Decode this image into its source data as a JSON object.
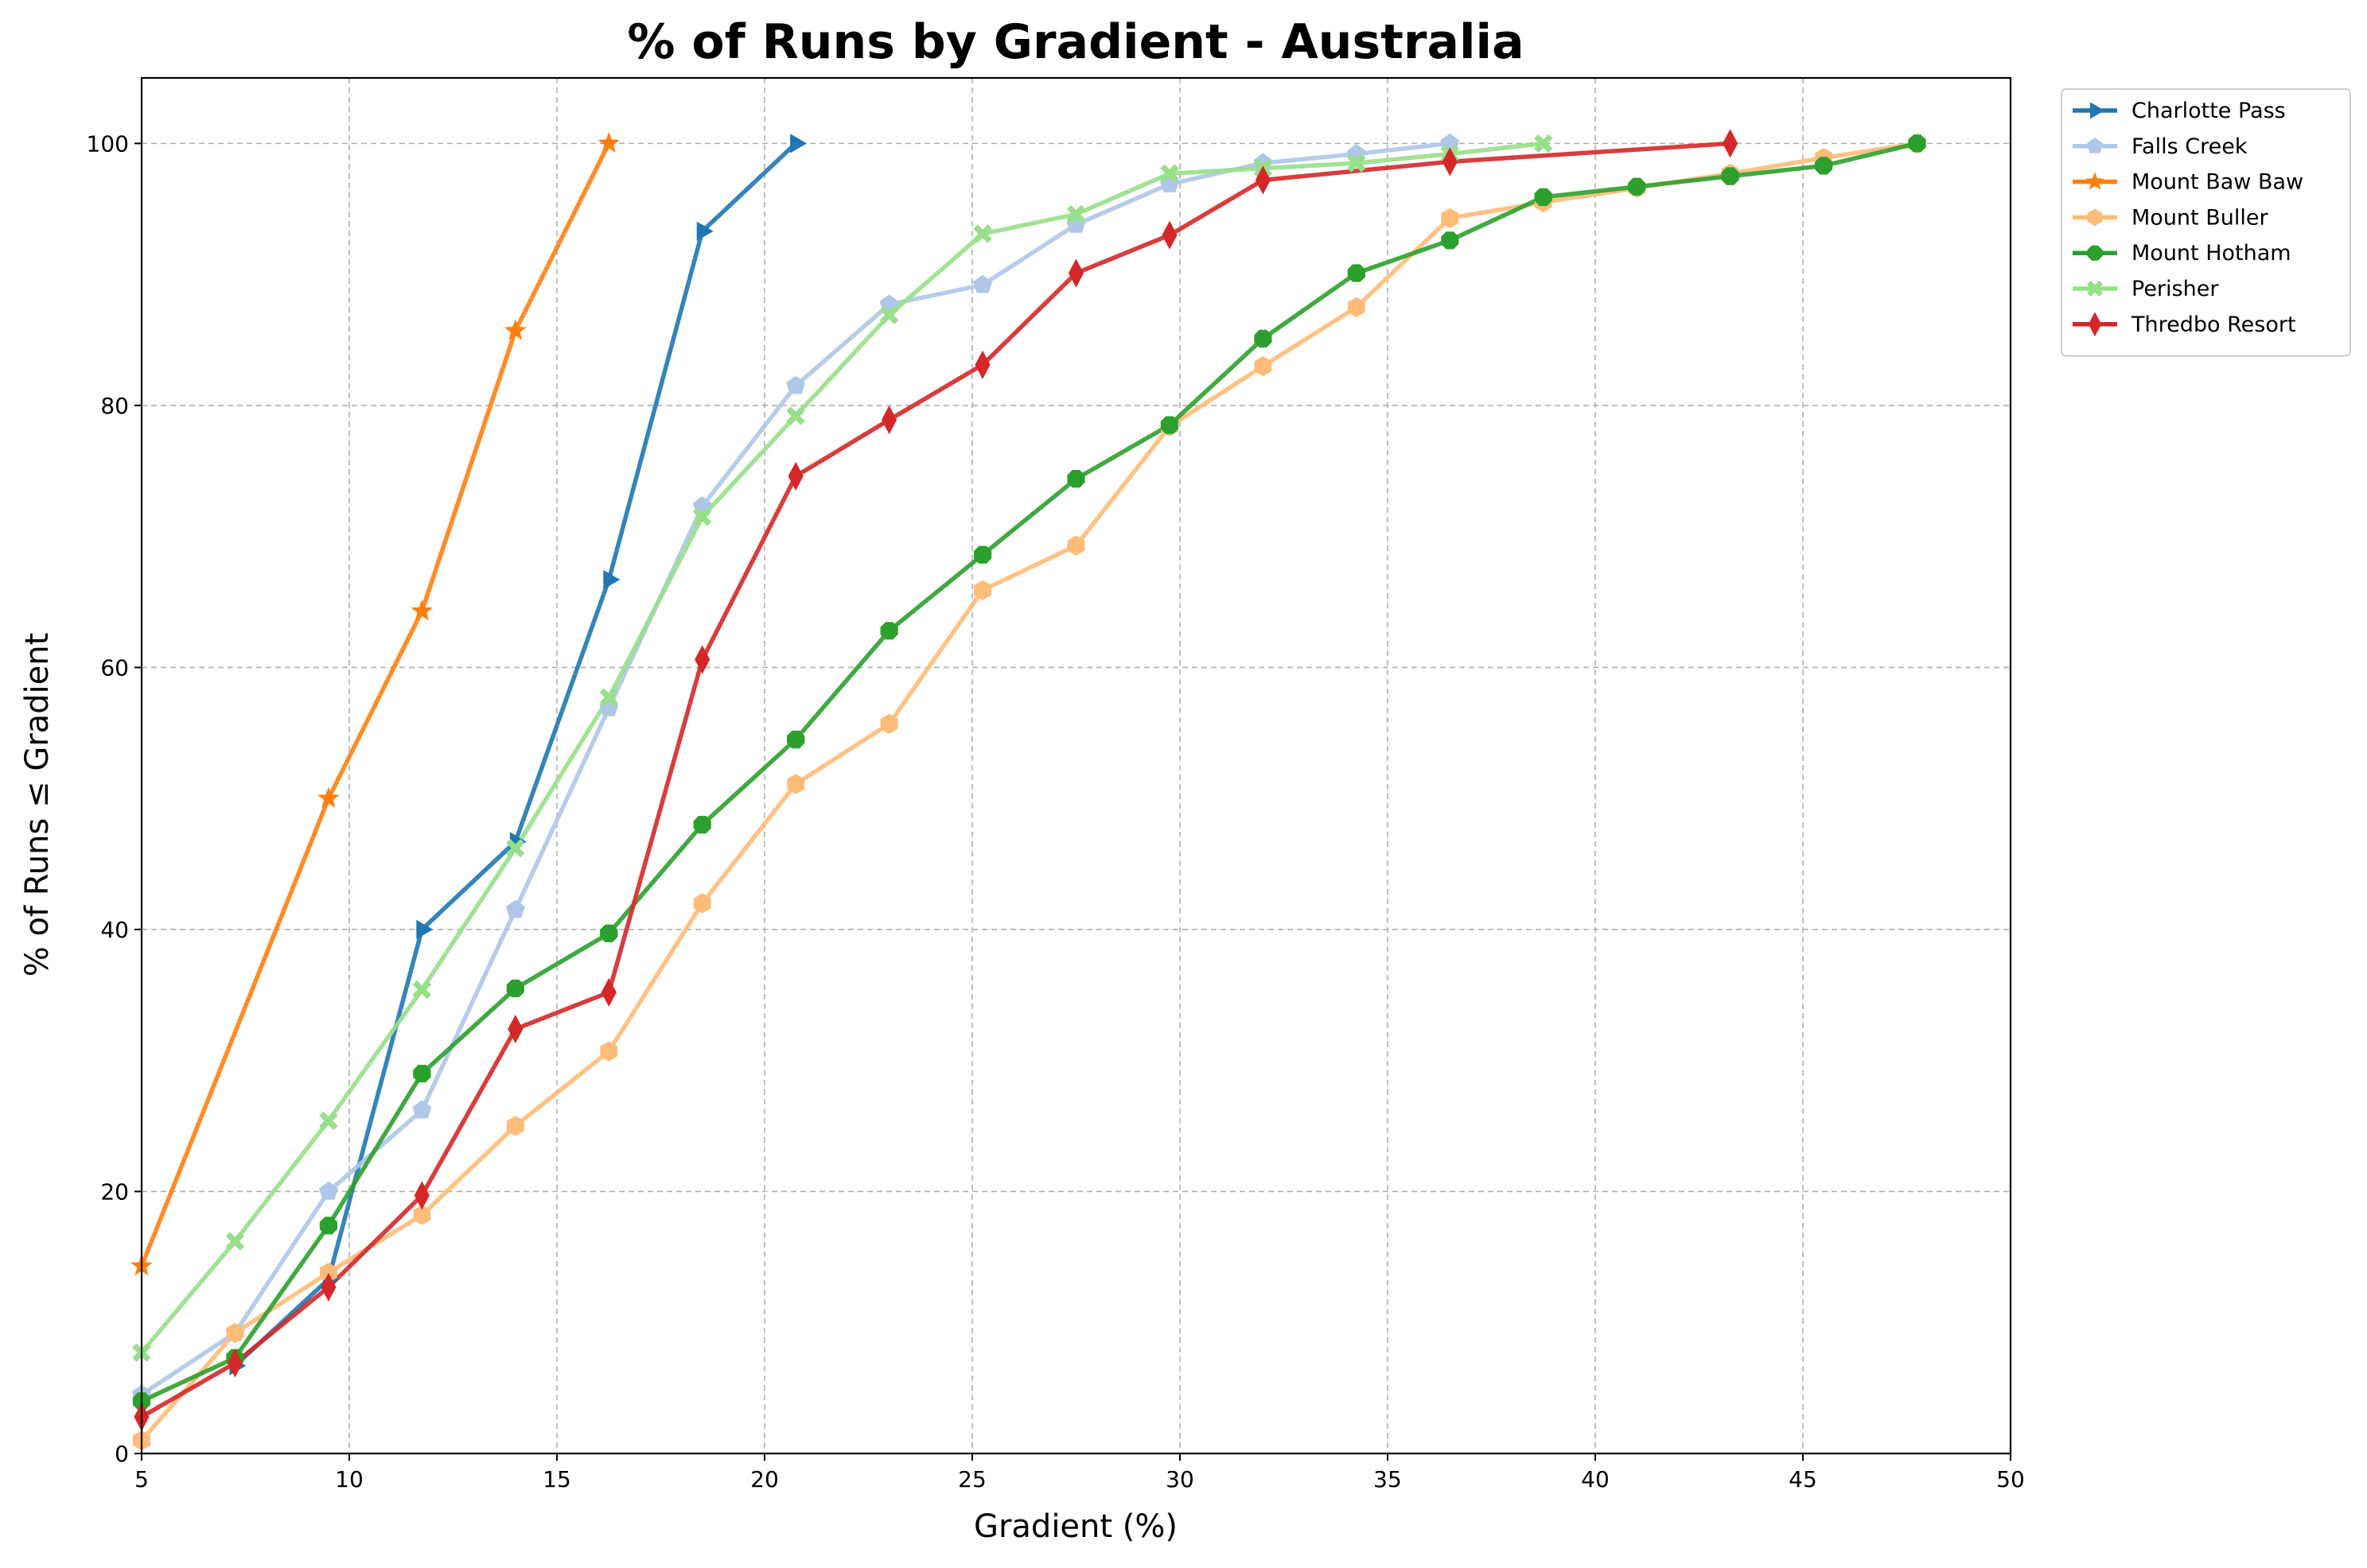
{
  "chart_data": {
    "type": "line",
    "title": "% of Runs by Gradient - Australia",
    "xlabel": "Gradient (%)",
    "ylabel": "% of Runs ≤ Gradient",
    "xlim": [
      5,
      50
    ],
    "ylim": [
      0,
      105
    ],
    "xticks": [
      5,
      10,
      15,
      20,
      25,
      30,
      35,
      40,
      45,
      50
    ],
    "yticks": [
      0,
      20,
      40,
      60,
      80,
      100
    ],
    "grid": true,
    "legend_position": "outside-top-right",
    "series": [
      {
        "name": "Charlotte Pass",
        "color": "#1f77b4",
        "marker": "triangle-right",
        "x": [
          7.25,
          9.5,
          11.75,
          14.0,
          16.25,
          18.5,
          20.75
        ],
        "y": [
          6.7,
          13.3,
          40.0,
          46.7,
          66.7,
          93.3,
          100.0
        ]
      },
      {
        "name": "Falls Creek",
        "color": "#aec7e8",
        "marker": "pentagon",
        "x": [
          5.0,
          7.25,
          9.5,
          11.75,
          14.0,
          16.25,
          18.5,
          20.75,
          23.0,
          25.25,
          27.5,
          29.75,
          32.0,
          34.25,
          36.5
        ],
        "y": [
          4.5,
          9.2,
          20.0,
          26.2,
          41.5,
          56.9,
          72.3,
          81.5,
          87.7,
          89.2,
          93.8,
          96.9,
          98.5,
          99.2,
          100.0
        ]
      },
      {
        "name": "Mount Baw Baw",
        "color": "#ff7f0e",
        "marker": "star",
        "x": [
          5.0,
          9.5,
          11.75,
          14.0,
          16.25
        ],
        "y": [
          14.3,
          50.0,
          64.3,
          85.7,
          100.0
        ]
      },
      {
        "name": "Mount Buller",
        "color": "#ffbb78",
        "marker": "hexagon",
        "x": [
          5.0,
          7.25,
          9.5,
          11.75,
          14.0,
          16.25,
          18.5,
          20.75,
          23.0,
          25.25,
          27.5,
          29.75,
          32.0,
          34.25,
          36.5,
          38.75,
          41.0,
          43.25,
          45.5,
          47.75
        ],
        "y": [
          1.0,
          9.2,
          13.8,
          18.2,
          25.0,
          30.7,
          42.0,
          51.1,
          55.7,
          65.9,
          69.3,
          78.4,
          83.0,
          87.5,
          94.3,
          95.5,
          96.6,
          97.7,
          98.9,
          100.0
        ]
      },
      {
        "name": "Mount Hotham",
        "color": "#2ca02c",
        "marker": "octagon",
        "x": [
          5.0,
          7.25,
          9.5,
          11.75,
          14.0,
          16.25,
          18.5,
          20.75,
          23.0,
          25.25,
          27.5,
          29.75,
          32.0,
          34.25,
          36.5,
          38.75,
          41.0,
          43.25,
          45.5,
          47.75
        ],
        "y": [
          4.0,
          7.3,
          17.4,
          29.0,
          35.5,
          39.7,
          48.0,
          54.5,
          62.8,
          68.6,
          74.4,
          78.5,
          85.1,
          90.1,
          92.6,
          95.9,
          96.7,
          97.5,
          98.3,
          100.0
        ]
      },
      {
        "name": "Perisher",
        "color": "#98df8a",
        "marker": "x-filled",
        "x": [
          5.0,
          7.25,
          9.5,
          11.75,
          14.0,
          16.25,
          18.5,
          20.75,
          23.0,
          25.25,
          27.5,
          29.75,
          32.0,
          34.25,
          36.5,
          38.75
        ],
        "y": [
          7.7,
          16.2,
          25.4,
          35.4,
          46.2,
          57.7,
          71.5,
          79.2,
          86.9,
          93.1,
          94.6,
          97.7,
          98.1,
          98.5,
          99.2,
          100.0
        ]
      },
      {
        "name": "Thredbo Resort",
        "color": "#d62728",
        "marker": "thin-diamond",
        "x": [
          5.0,
          7.25,
          9.5,
          11.75,
          14.0,
          16.25,
          18.5,
          20.75,
          23.0,
          25.25,
          27.5,
          29.75,
          32.0,
          36.5,
          43.25
        ],
        "y": [
          2.8,
          6.9,
          12.7,
          19.7,
          32.4,
          35.2,
          60.6,
          74.6,
          78.9,
          83.1,
          90.1,
          93.0,
          97.2,
          98.6,
          100.0
        ]
      }
    ]
  }
}
